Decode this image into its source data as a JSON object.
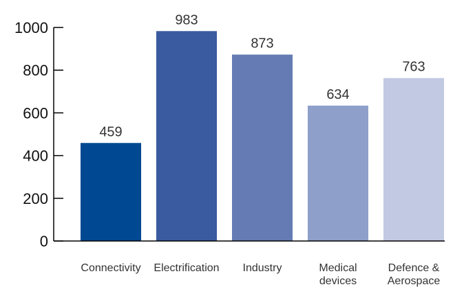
{
  "chart_data": {
    "type": "bar",
    "title": "",
    "xlabel": "",
    "ylabel": "",
    "categories": [
      [
        "Connectivity"
      ],
      [
        "Electrification"
      ],
      [
        "Industry"
      ],
      [
        "Medical",
        "devices"
      ],
      [
        "Defence &",
        "Aerospace"
      ]
    ],
    "values": [
      459,
      983,
      873,
      634,
      763
    ],
    "value_labels": [
      "459",
      "983",
      "873",
      "634",
      "763"
    ],
    "colors": [
      "#004891",
      "#3a5b9f",
      "#647cb3",
      "#8e9fca",
      "#c2c9e3"
    ],
    "ylim": [
      0,
      1000
    ],
    "yticks": [
      0,
      200,
      400,
      600,
      800,
      1000
    ],
    "ytick_labels": [
      "0",
      "200",
      "400",
      "600",
      "800",
      "1000"
    ],
    "grid": false,
    "legend": "none"
  }
}
